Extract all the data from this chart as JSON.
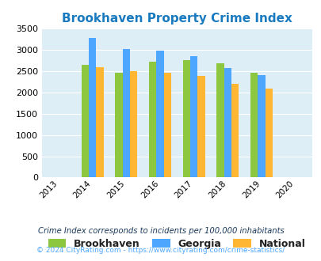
{
  "title": "Brookhaven Property Crime Index",
  "bar_years": [
    2014,
    2015,
    2016,
    2017,
    2018,
    2019
  ],
  "all_years": [
    2013,
    2014,
    2015,
    2016,
    2017,
    2018,
    2019,
    2020
  ],
  "brookhaven": [
    2650,
    2460,
    2730,
    2770,
    2680,
    2470
  ],
  "georgia": [
    3280,
    3020,
    2990,
    2850,
    2580,
    2400
  ],
  "national": [
    2590,
    2500,
    2470,
    2380,
    2210,
    2100
  ],
  "color_brookhaven": "#8dc63f",
  "color_georgia": "#4da6ff",
  "color_national": "#ffb733",
  "bg_color": "#ddeef6",
  "ylim": [
    0,
    3500
  ],
  "yticks": [
    0,
    500,
    1000,
    1500,
    2000,
    2500,
    3000,
    3500
  ],
  "legend_labels": [
    "Brookhaven",
    "Georgia",
    "National"
  ],
  "footnote1": "Crime Index corresponds to incidents per 100,000 inhabitants",
  "footnote2": "© 2024 CityRating.com - https://www.cityrating.com/crime-statistics/",
  "title_color": "#1a7abf",
  "footnote1_color": "#1a3a5c",
  "footnote2_color": "#4da6ff"
}
